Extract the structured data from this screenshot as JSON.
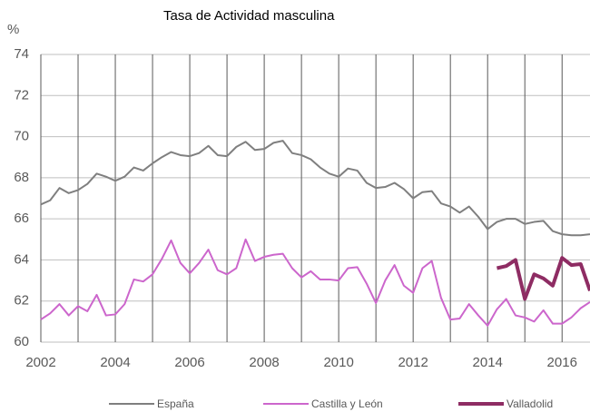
{
  "chart_data": {
    "type": "line",
    "title": "Tasa de Actividad masculina",
    "y_label": "%",
    "x": [
      2002,
      2002.25,
      2002.5,
      2002.75,
      2003,
      2003.25,
      2003.5,
      2003.75,
      2004,
      2004.25,
      2004.5,
      2004.75,
      2005,
      2005.25,
      2005.5,
      2005.75,
      2006,
      2006.25,
      2006.5,
      2006.75,
      2007,
      2007.25,
      2007.5,
      2007.75,
      2008,
      2008.25,
      2008.5,
      2008.75,
      2009,
      2009.25,
      2009.5,
      2009.75,
      2010,
      2010.25,
      2010.5,
      2010.75,
      2011,
      2011.25,
      2011.5,
      2011.75,
      2012,
      2012.25,
      2012.5,
      2012.75,
      2013,
      2013.25,
      2013.5,
      2013.75,
      2014,
      2014.25,
      2014.5,
      2014.75,
      2015,
      2015.25,
      2015.5,
      2015.75,
      2016,
      2016.25,
      2016.5,
      2016.75
    ],
    "series": [
      {
        "name": "España",
        "color": "#7f7f7f",
        "width": 2,
        "values": [
          66.7,
          66.9,
          67.5,
          67.25,
          67.4,
          67.7,
          68.2,
          68.05,
          67.85,
          68.05,
          68.5,
          68.35,
          68.7,
          69.0,
          69.25,
          69.1,
          69.05,
          69.2,
          69.55,
          69.1,
          69.05,
          69.5,
          69.75,
          69.35,
          69.4,
          69.7,
          69.8,
          69.2,
          69.1,
          68.9,
          68.5,
          68.2,
          68.05,
          68.45,
          68.35,
          67.75,
          67.5,
          67.55,
          67.75,
          67.45,
          67.0,
          67.3,
          67.35,
          66.75,
          66.6,
          66.3,
          66.6,
          66.1,
          65.5,
          65.85,
          66.0,
          66.0,
          65.75,
          65.85,
          65.9,
          65.4,
          65.25,
          65.2,
          65.2,
          65.25
        ]
      },
      {
        "name": "Castilla y León",
        "color": "#cc66cc",
        "width": 2,
        "values": [
          61.1,
          61.4,
          61.85,
          61.3,
          61.75,
          61.5,
          62.3,
          61.3,
          61.35,
          61.85,
          63.05,
          62.95,
          63.3,
          64.05,
          64.95,
          63.85,
          63.35,
          63.85,
          64.5,
          63.5,
          63.3,
          63.6,
          65.0,
          63.95,
          64.15,
          64.25,
          64.3,
          63.6,
          63.15,
          63.45,
          63.05,
          63.05,
          63.0,
          63.6,
          63.65,
          62.85,
          61.9,
          63.0,
          63.75,
          62.75,
          62.4,
          63.6,
          63.95,
          62.15,
          61.1,
          61.15,
          61.85,
          61.3,
          60.8,
          61.6,
          62.1,
          61.3,
          61.2,
          61.0,
          61.55,
          60.9,
          60.9,
          61.2,
          61.65,
          61.95
        ]
      },
      {
        "name": "Valladolid",
        "color": "#8e2c63",
        "width": 4,
        "values": [
          null,
          null,
          null,
          null,
          null,
          null,
          null,
          null,
          null,
          null,
          null,
          null,
          null,
          null,
          null,
          null,
          null,
          null,
          null,
          null,
          null,
          null,
          null,
          null,
          null,
          null,
          null,
          null,
          null,
          null,
          null,
          null,
          null,
          null,
          null,
          null,
          null,
          null,
          null,
          null,
          null,
          null,
          null,
          null,
          null,
          null,
          null,
          null,
          null,
          63.6,
          63.7,
          64.0,
          62.1,
          63.3,
          63.1,
          62.75,
          64.1,
          63.75,
          63.8,
          62.5
        ]
      }
    ],
    "xlim": [
      2002,
      2016.75
    ],
    "xticks": [
      2002,
      2004,
      2006,
      2008,
      2010,
      2012,
      2014,
      2016
    ],
    "xgrid": [
      2002,
      2003,
      2004,
      2005,
      2006,
      2007,
      2008,
      2009,
      2010,
      2011,
      2012,
      2013,
      2014,
      2015,
      2016
    ],
    "ylim": [
      60,
      74
    ],
    "yticks": [
      60,
      62,
      64,
      66,
      68,
      70,
      72,
      74
    ],
    "grid": true,
    "legend": "bottom"
  }
}
